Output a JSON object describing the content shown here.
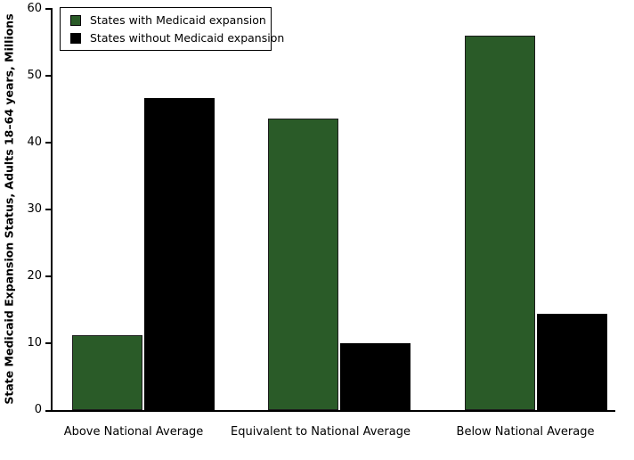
{
  "chart_data": {
    "type": "bar",
    "title": "",
    "categories": [
      "Above National Average",
      "Equivalent to National Average",
      "Below National Average"
    ],
    "series": [
      {
        "name": "States with Medicaid expansion",
        "color": "#2a5b28",
        "values": [
          11.2,
          43.6,
          56.0
        ]
      },
      {
        "name": "States without Medicaid expansion",
        "color": "#000000",
        "values": [
          46.6,
          10.0,
          14.4
        ]
      }
    ],
    "xlabel": "",
    "ylabel": "State Medicaid Expansion Status, Adults 18–64 years, Millions",
    "ylim": [
      0,
      60
    ],
    "yticks": [
      0,
      10,
      20,
      30,
      40,
      50,
      60
    ],
    "grid": false,
    "legend_position": "top-left",
    "axis_color": "#000000",
    "background_color": "#ffffff"
  }
}
